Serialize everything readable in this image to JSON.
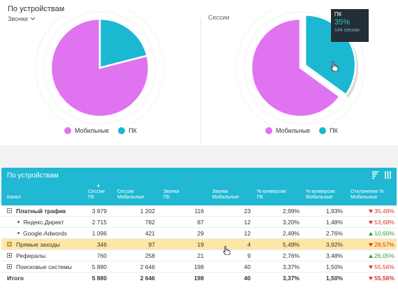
{
  "charts": {
    "title": "По устройствам",
    "dropdown_label": "Звонки",
    "right_label": "Сессии",
    "colors": {
      "mobile": "#e073ef",
      "pc": "#1cb8d2"
    },
    "legend": {
      "mobile": "Мобильные",
      "pc": "ПК"
    },
    "tooltip": {
      "label": "ПК",
      "percent": "35%",
      "sessions": "144 сессии"
    }
  },
  "chart_data": [
    {
      "type": "pie",
      "title": "",
      "categories": [
        "Мобильные",
        "ПК"
      ],
      "values": [
        79,
        21
      ]
    },
    {
      "type": "pie",
      "title": "Сессии",
      "categories": [
        "Мобильные",
        "ПК"
      ],
      "values": [
        65,
        35
      ]
    }
  ],
  "table": {
    "title": "По устройствам",
    "headers": [
      [
        "Канал"
      ],
      [
        "Сессии",
        "ПК"
      ],
      [
        "Сессии",
        "Мобильные"
      ],
      [
        "Звонки",
        "ПК"
      ],
      [
        "Звонки",
        "Мобильные"
      ],
      [
        "% конверсии",
        "ПК"
      ],
      [
        "% конверсии",
        "Мобильные"
      ],
      [
        "Отклонение %",
        "Мобильные"
      ]
    ],
    "rows": [
      {
        "name": "Платный трафик",
        "icon": "minus",
        "bold": true,
        "cells": [
          "3 879",
          "1 202",
          "116",
          "23",
          "2,99%",
          "1,93%"
        ],
        "dev": "35,48%",
        "dir": "down",
        "hl": false
      },
      {
        "name": "Яндекс.Директ",
        "icon": "bullet",
        "bold": false,
        "cells": [
          "2 715",
          "782",
          "87",
          "12",
          "3,20%",
          "1,48%"
        ],
        "dev": "53,68%",
        "dir": "down",
        "hl": false
      },
      {
        "name": "Google.Adwords",
        "icon": "bullet",
        "bold": false,
        "cells": [
          "1 096",
          "421",
          "29",
          "12",
          "2,49%",
          "2,76%"
        ],
        "dev": "10,60%",
        "dir": "up",
        "hl": false
      },
      {
        "name": "Прямые заходы",
        "icon": "plusfilled",
        "bold": false,
        "cells": [
          "346",
          "97",
          "19",
          "4",
          "5,49%",
          "3,92%"
        ],
        "dev": "28,57%",
        "dir": "down",
        "hl": true
      },
      {
        "name": "Рефералы",
        "icon": "plus",
        "bold": false,
        "cells": [
          "760",
          "258",
          "21",
          "9",
          "2,76%",
          "3,48%"
        ],
        "dev": "26,05%",
        "dir": "up",
        "hl": false
      },
      {
        "name": "Поисковые системы",
        "icon": "plus",
        "bold": false,
        "cells": [
          "5 880",
          "2 646",
          "198",
          "40",
          "3,37%",
          "1,50%"
        ],
        "dev": "55,56%",
        "dir": "down",
        "hl": false
      },
      {
        "name": "Итого",
        "icon": "none",
        "bold": true,
        "cells": [
          "5 880",
          "2 646",
          "198",
          "40",
          "3,37%",
          "1,50%"
        ],
        "dev": "55,56%",
        "dir": "down",
        "hl": false,
        "total": true
      }
    ]
  }
}
